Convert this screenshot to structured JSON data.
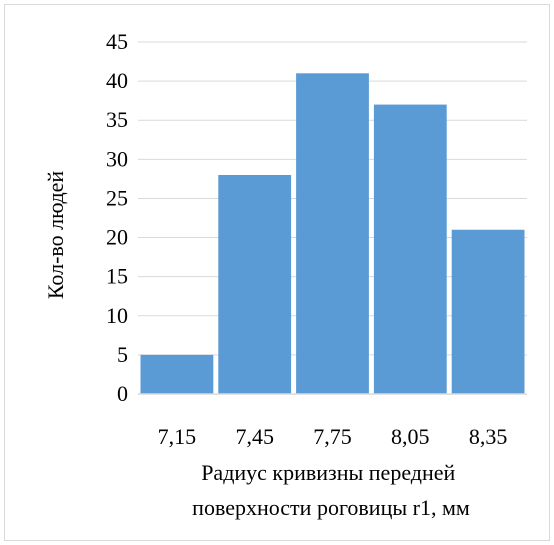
{
  "chart_data": {
    "type": "bar",
    "categories": [
      "7,15",
      "7,45",
      "7,75",
      "8,05",
      "8,35"
    ],
    "values": [
      5,
      28,
      41,
      37,
      21
    ],
    "title": "",
    "xlabel_lines": [
      "Радиус кривизны передней",
      "поверхности роговицы r1, мм"
    ],
    "ylabel": "Кол-во людей",
    "ylim": [
      0,
      45
    ],
    "yticks": [
      0,
      5,
      10,
      15,
      20,
      25,
      30,
      35,
      40,
      45
    ],
    "grid": "horizontal",
    "legend": "none",
    "bar_color": "#5b9bd5",
    "grid_color": "#d9d9d9"
  }
}
